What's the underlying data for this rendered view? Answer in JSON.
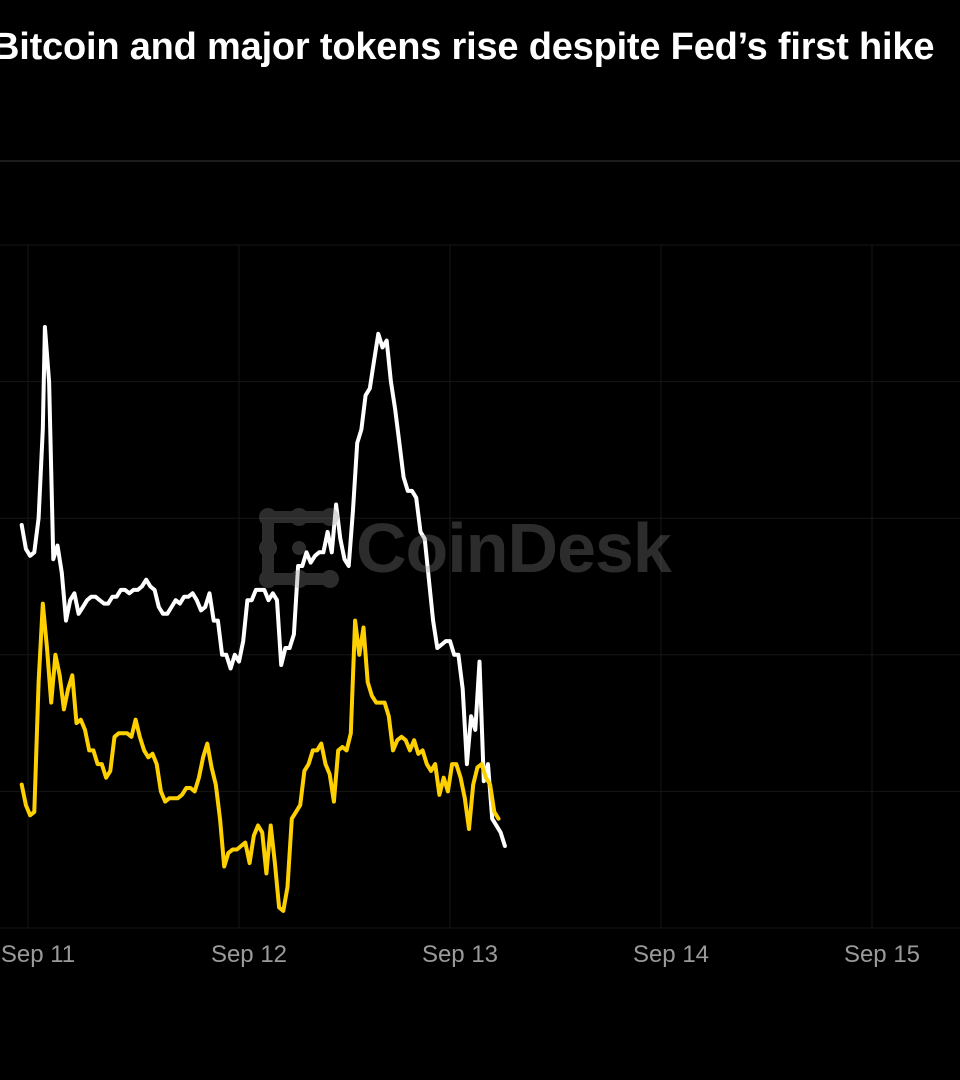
{
  "chart_data": {
    "type": "line",
    "title": "Bitcoin and major tokens rise despite Fed’s first hike",
    "xlabel": "",
    "ylabel": "",
    "x_tick_labels": [
      "Sep 11",
      "Sep 12",
      "Sep 13",
      "Sep 14",
      "Sep 15"
    ],
    "x_range_days": [
      10.97,
      15.5
    ],
    "y_range": [
      0,
      100
    ],
    "grid": true,
    "legend": "none",
    "series": [
      {
        "color": "#ffffff",
        "points": [
          [
            10.97,
            59
          ],
          [
            10.99,
            55.5
          ],
          [
            11.01,
            54.5
          ],
          [
            11.03,
            55
          ],
          [
            11.05,
            60
          ],
          [
            11.07,
            73
          ],
          [
            11.08,
            88
          ],
          [
            11.1,
            80
          ],
          [
            11.12,
            54
          ],
          [
            11.14,
            56
          ],
          [
            11.16,
            52
          ],
          [
            11.18,
            45
          ],
          [
            11.2,
            48
          ],
          [
            11.22,
            49
          ],
          [
            11.24,
            46
          ],
          [
            11.26,
            47
          ],
          [
            11.28,
            48
          ],
          [
            11.3,
            48.5
          ],
          [
            11.32,
            48.5
          ],
          [
            11.34,
            48
          ],
          [
            11.36,
            47.5
          ],
          [
            11.38,
            47.5
          ],
          [
            11.4,
            48.5
          ],
          [
            11.42,
            48.5
          ],
          [
            11.44,
            49.5
          ],
          [
            11.46,
            49.5
          ],
          [
            11.48,
            49
          ],
          [
            11.5,
            49.5
          ],
          [
            11.52,
            49.5
          ],
          [
            11.54,
            50
          ],
          [
            11.56,
            51
          ],
          [
            11.58,
            50
          ],
          [
            11.6,
            49.5
          ],
          [
            11.62,
            47
          ],
          [
            11.64,
            46
          ],
          [
            11.66,
            46
          ],
          [
            11.68,
            47
          ],
          [
            11.7,
            48
          ],
          [
            11.72,
            47.5
          ],
          [
            11.74,
            48.5
          ],
          [
            11.76,
            48.5
          ],
          [
            11.78,
            49
          ],
          [
            11.8,
            48
          ],
          [
            11.82,
            46.5
          ],
          [
            11.84,
            47
          ],
          [
            11.86,
            49
          ],
          [
            11.88,
            45
          ],
          [
            11.9,
            45
          ],
          [
            11.92,
            40
          ],
          [
            11.94,
            40
          ],
          [
            11.96,
            38
          ],
          [
            11.98,
            40
          ],
          [
            12.0,
            39
          ],
          [
            12.02,
            42
          ],
          [
            12.04,
            48
          ],
          [
            12.06,
            48
          ],
          [
            12.08,
            49.5
          ],
          [
            12.1,
            49.5
          ],
          [
            12.12,
            49.5
          ],
          [
            12.14,
            48
          ],
          [
            12.16,
            49
          ],
          [
            12.18,
            48
          ],
          [
            12.2,
            38.5
          ],
          [
            12.22,
            41
          ],
          [
            12.24,
            41
          ],
          [
            12.26,
            43
          ],
          [
            12.28,
            53
          ],
          [
            12.3,
            53
          ],
          [
            12.32,
            55
          ],
          [
            12.34,
            53.5
          ],
          [
            12.36,
            54.5
          ],
          [
            12.38,
            55
          ],
          [
            12.4,
            55
          ],
          [
            12.42,
            58
          ],
          [
            12.44,
            55
          ],
          [
            12.46,
            62
          ],
          [
            12.48,
            57
          ],
          [
            12.5,
            54
          ],
          [
            12.52,
            53
          ],
          [
            12.54,
            61
          ],
          [
            12.56,
            71
          ],
          [
            12.58,
            73
          ],
          [
            12.6,
            78
          ],
          [
            12.62,
            79
          ],
          [
            12.64,
            83
          ],
          [
            12.66,
            87
          ],
          [
            12.68,
            85
          ],
          [
            12.7,
            86
          ],
          [
            12.72,
            80
          ],
          [
            12.74,
            76
          ],
          [
            12.76,
            71
          ],
          [
            12.78,
            66
          ],
          [
            12.8,
            64
          ],
          [
            12.82,
            64
          ],
          [
            12.84,
            63
          ],
          [
            12.86,
            58
          ],
          [
            12.88,
            57
          ],
          [
            12.9,
            51
          ],
          [
            12.92,
            45
          ],
          [
            12.94,
            41
          ],
          [
            12.96,
            41.5
          ],
          [
            12.98,
            42
          ],
          [
            13.0,
            42
          ],
          [
            13.02,
            40
          ],
          [
            13.04,
            40
          ],
          [
            13.06,
            35
          ],
          [
            13.08,
            24
          ],
          [
            13.1,
            31
          ],
          [
            13.12,
            29
          ],
          [
            13.14,
            39
          ],
          [
            13.16,
            21.5
          ],
          [
            13.18,
            24
          ],
          [
            13.2,
            16
          ],
          [
            13.22,
            15
          ],
          [
            13.24,
            14
          ],
          [
            13.26,
            12
          ]
        ]
      },
      {
        "color": "#ffd000",
        "points": [
          [
            10.97,
            21
          ],
          [
            10.99,
            18
          ],
          [
            11.01,
            16.5
          ],
          [
            11.03,
            17
          ],
          [
            11.05,
            36
          ],
          [
            11.07,
            47.5
          ],
          [
            11.09,
            41
          ],
          [
            11.11,
            33
          ],
          [
            11.13,
            40
          ],
          [
            11.15,
            37
          ],
          [
            11.17,
            32
          ],
          [
            11.19,
            35
          ],
          [
            11.21,
            37
          ],
          [
            11.23,
            30
          ],
          [
            11.25,
            30.5
          ],
          [
            11.27,
            29
          ],
          [
            11.29,
            26
          ],
          [
            11.31,
            26
          ],
          [
            11.33,
            24
          ],
          [
            11.35,
            24
          ],
          [
            11.37,
            22
          ],
          [
            11.39,
            23
          ],
          [
            11.41,
            28
          ],
          [
            11.43,
            28.5
          ],
          [
            11.45,
            28.5
          ],
          [
            11.47,
            28.5
          ],
          [
            11.49,
            28
          ],
          [
            11.51,
            30.5
          ],
          [
            11.53,
            28
          ],
          [
            11.55,
            26
          ],
          [
            11.57,
            25
          ],
          [
            11.59,
            25.5
          ],
          [
            11.61,
            24
          ],
          [
            11.63,
            20
          ],
          [
            11.65,
            18.5
          ],
          [
            11.67,
            19
          ],
          [
            11.69,
            19
          ],
          [
            11.71,
            19
          ],
          [
            11.73,
            19.5
          ],
          [
            11.75,
            20.5
          ],
          [
            11.77,
            20.5
          ],
          [
            11.79,
            20
          ],
          [
            11.81,
            22
          ],
          [
            11.83,
            25
          ],
          [
            11.85,
            27
          ],
          [
            11.87,
            23.5
          ],
          [
            11.89,
            21
          ],
          [
            11.91,
            16
          ],
          [
            11.93,
            9
          ],
          [
            11.95,
            11
          ],
          [
            11.97,
            11.5
          ],
          [
            11.99,
            11.5
          ],
          [
            12.01,
            12
          ],
          [
            12.03,
            12.5
          ],
          [
            12.05,
            9.5
          ],
          [
            12.07,
            13.5
          ],
          [
            12.09,
            15
          ],
          [
            12.11,
            14
          ],
          [
            12.13,
            8
          ],
          [
            12.15,
            15
          ],
          [
            12.17,
            9.5
          ],
          [
            12.19,
            3
          ],
          [
            12.21,
            2.5
          ],
          [
            12.23,
            6
          ],
          [
            12.25,
            16
          ],
          [
            12.27,
            17
          ],
          [
            12.29,
            18
          ],
          [
            12.31,
            23
          ],
          [
            12.33,
            24
          ],
          [
            12.35,
            26
          ],
          [
            12.37,
            26
          ],
          [
            12.39,
            27
          ],
          [
            12.41,
            24
          ],
          [
            12.43,
            22.5
          ],
          [
            12.45,
            18.5
          ],
          [
            12.47,
            26
          ],
          [
            12.49,
            26.5
          ],
          [
            12.51,
            26
          ],
          [
            12.53,
            28.5
          ],
          [
            12.55,
            45
          ],
          [
            12.57,
            40
          ],
          [
            12.59,
            44
          ],
          [
            12.61,
            36
          ],
          [
            12.63,
            34
          ],
          [
            12.65,
            33
          ],
          [
            12.67,
            33
          ],
          [
            12.69,
            33
          ],
          [
            12.71,
            31
          ],
          [
            12.73,
            26
          ],
          [
            12.75,
            27.5
          ],
          [
            12.77,
            28
          ],
          [
            12.79,
            27.5
          ],
          [
            12.81,
            26
          ],
          [
            12.83,
            27.5
          ],
          [
            12.85,
            25.5
          ],
          [
            12.87,
            26
          ],
          [
            12.89,
            24
          ],
          [
            12.91,
            23
          ],
          [
            12.93,
            24
          ],
          [
            12.95,
            19.5
          ],
          [
            12.97,
            22
          ],
          [
            12.99,
            20
          ],
          [
            13.01,
            24
          ],
          [
            13.03,
            24
          ],
          [
            13.05,
            22
          ],
          [
            13.07,
            19
          ],
          [
            13.09,
            14.5
          ],
          [
            13.11,
            21
          ],
          [
            13.13,
            23.5
          ],
          [
            13.15,
            24
          ],
          [
            13.17,
            22
          ],
          [
            13.19,
            21
          ],
          [
            13.21,
            17
          ],
          [
            13.23,
            16
          ]
        ]
      }
    ]
  }
}
